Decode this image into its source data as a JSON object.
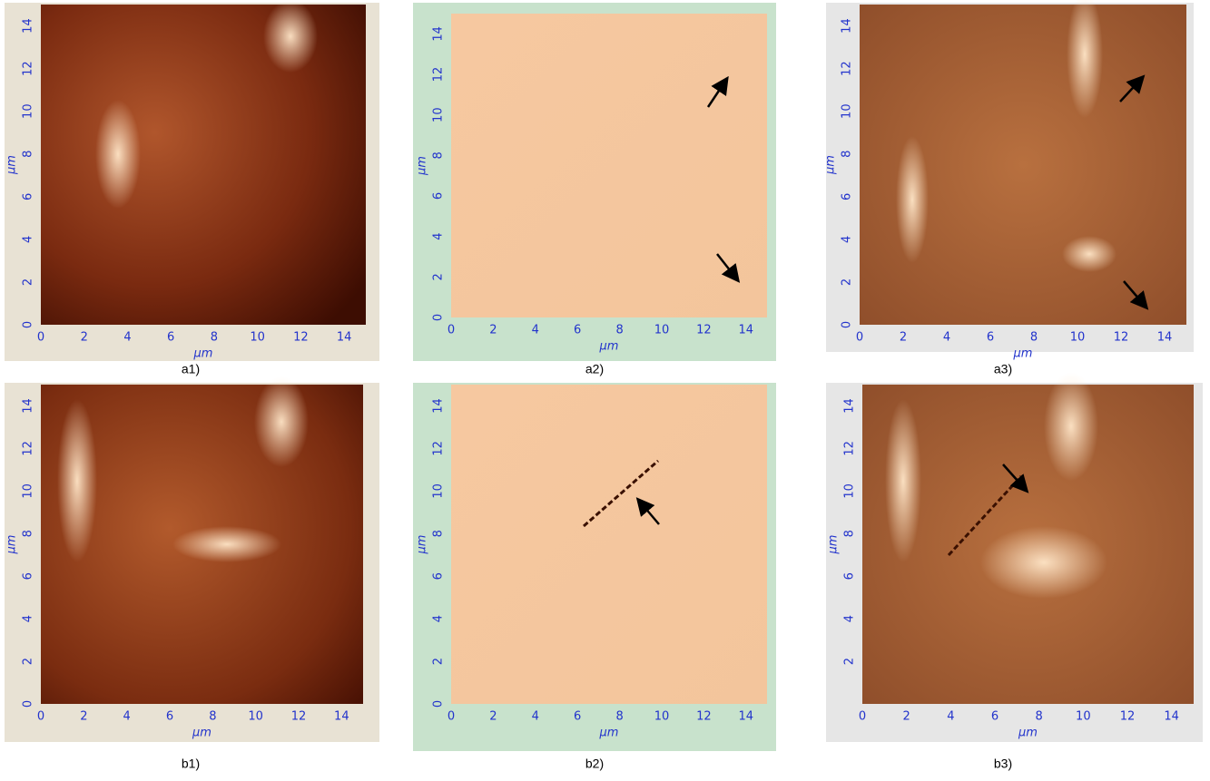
{
  "panels": [
    {
      "caption": "a1)",
      "x_label": "µm",
      "y_label": "µm",
      "xticks": [
        0,
        2,
        4,
        6,
        8,
        10,
        12,
        14
      ],
      "yticks": [
        0,
        2,
        4,
        6,
        8,
        10,
        12,
        14
      ]
    },
    {
      "caption": "a2)",
      "x_label": "µm",
      "y_label": "µm",
      "xticks": [
        0,
        2,
        4,
        6,
        8,
        10,
        12,
        14
      ],
      "yticks": [
        0,
        2,
        4,
        6,
        8,
        10,
        12,
        14
      ]
    },
    {
      "caption": "a3)",
      "x_label": "µm",
      "y_label": "µm",
      "xticks": [
        0,
        2,
        4,
        6,
        8,
        10,
        12,
        14
      ],
      "yticks": [
        0,
        2,
        4,
        6,
        8,
        10,
        12,
        14
      ]
    },
    {
      "caption": "b1)",
      "x_label": "µm",
      "y_label": "µm",
      "xticks": [
        0,
        2,
        4,
        6,
        8,
        10,
        12,
        14
      ],
      "yticks": [
        0,
        2,
        4,
        6,
        8,
        10,
        12,
        14
      ]
    },
    {
      "caption": "b2)",
      "x_label": "µm",
      "y_label": "µm",
      "xticks": [
        0,
        2,
        4,
        6,
        8,
        10,
        12,
        14
      ],
      "yticks": [
        0,
        2,
        4,
        6,
        8,
        10,
        12,
        14
      ]
    },
    {
      "caption": "b3)",
      "x_label": "µm",
      "y_label": "µm",
      "xticks": [
        0,
        2,
        4,
        6,
        8,
        10,
        12,
        14
      ],
      "yticks": [
        2,
        4,
        6,
        8,
        10,
        12,
        14
      ]
    }
  ]
}
